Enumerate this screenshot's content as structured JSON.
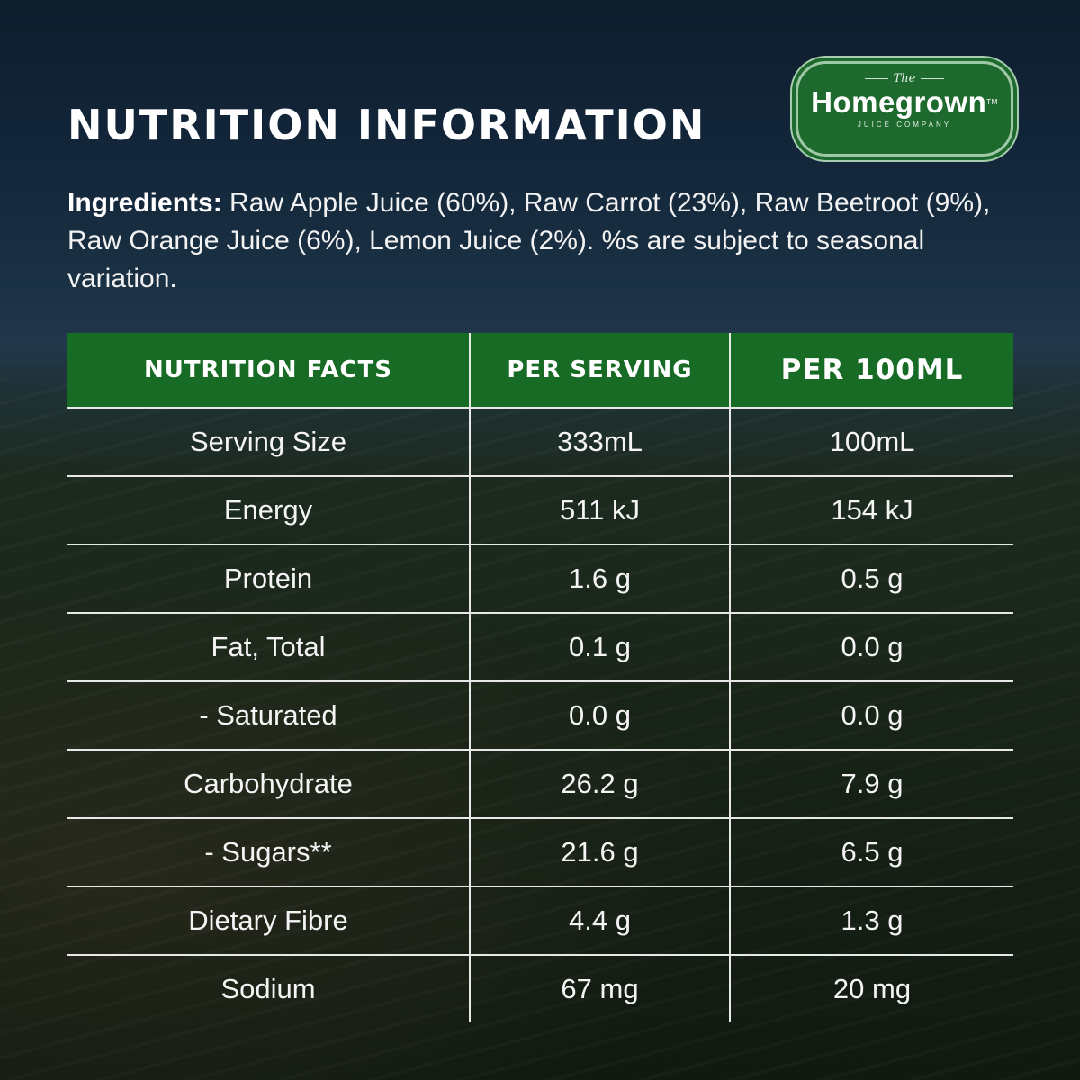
{
  "header": {
    "title": "NUTRITION INFORMATION"
  },
  "logo": {
    "the": "The",
    "name": "Homegrown",
    "tm": "TM",
    "subtitle": "JUICE COMPANY",
    "colors": {
      "fill": "#1e6a2e",
      "border": "#9fc9a6"
    }
  },
  "ingredients": {
    "label": "Ingredients:",
    "text": "Raw Apple Juice (60%), Raw Carrot (23%), Raw Beetroot (9%), Raw Orange Juice (6%), Lemon Juice (2%). %s are subject to seasonal variation."
  },
  "table": {
    "header_color": "#176b25",
    "columns": [
      "NUTRITION FACTS",
      "PER SERVING",
      "PER 100ML"
    ],
    "rows": [
      {
        "name": "Serving Size",
        "per_serving": "333mL",
        "per_100ml": "100mL"
      },
      {
        "name": "Energy",
        "per_serving": "511 kJ",
        "per_100ml": "154 kJ"
      },
      {
        "name": "Protein",
        "per_serving": "1.6 g",
        "per_100ml": "0.5 g"
      },
      {
        "name": "Fat, Total",
        "per_serving": "0.1 g",
        "per_100ml": "0.0 g"
      },
      {
        "name": "- Saturated",
        "per_serving": "0.0 g",
        "per_100ml": "0.0 g"
      },
      {
        "name": "Carbohydrate",
        "per_serving": "26.2 g",
        "per_100ml": "7.9 g"
      },
      {
        "name": "- Sugars**",
        "per_serving": "21.6 g",
        "per_100ml": "6.5 g"
      },
      {
        "name": "Dietary Fibre",
        "per_serving": "4.4 g",
        "per_100ml": "1.3 g"
      },
      {
        "name": "Sodium",
        "per_serving": "67 mg",
        "per_100ml": "20 mg"
      }
    ]
  }
}
